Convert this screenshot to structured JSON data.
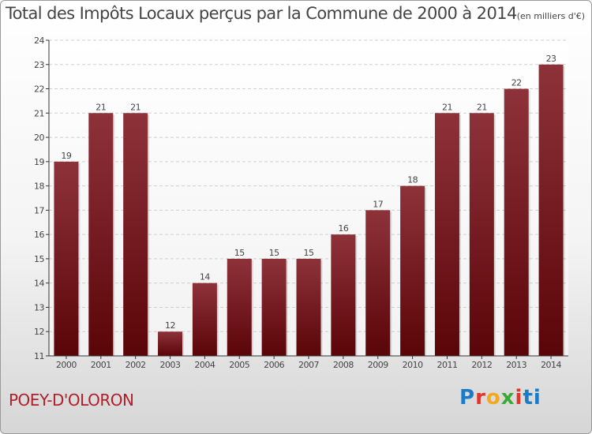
{
  "title": "Total des Impôts Locaux perçus par la Commune de 2000 à 2014",
  "title_unit": "(en milliers d'€)",
  "commune": "POEY-D'OLORON",
  "brand_letters": [
    "P",
    "r",
    "o",
    "x",
    "i",
    "ti"
  ],
  "colors": {
    "bar_top": "#8e323a",
    "bar_bottom": "#5a0508",
    "commune": "#b01e2a"
  },
  "chart_data": {
    "type": "bar",
    "title": "Total des Impôts Locaux perçus par la Commune de 2000 à 2014",
    "xlabel": "",
    "ylabel": "",
    "categories": [
      "2000",
      "2001",
      "2002",
      "2003",
      "2004",
      "2005",
      "2006",
      "2007",
      "2008",
      "2009",
      "2010",
      "2011",
      "2012",
      "2013",
      "2014"
    ],
    "values": [
      19,
      21,
      21,
      12,
      14,
      15,
      15,
      15,
      16,
      17,
      18,
      21,
      21,
      22,
      23
    ],
    "ylim": [
      11,
      24
    ],
    "yticks": [
      11,
      12,
      13,
      14,
      15,
      16,
      17,
      18,
      19,
      20,
      21,
      22,
      23,
      24
    ],
    "grid": true
  }
}
